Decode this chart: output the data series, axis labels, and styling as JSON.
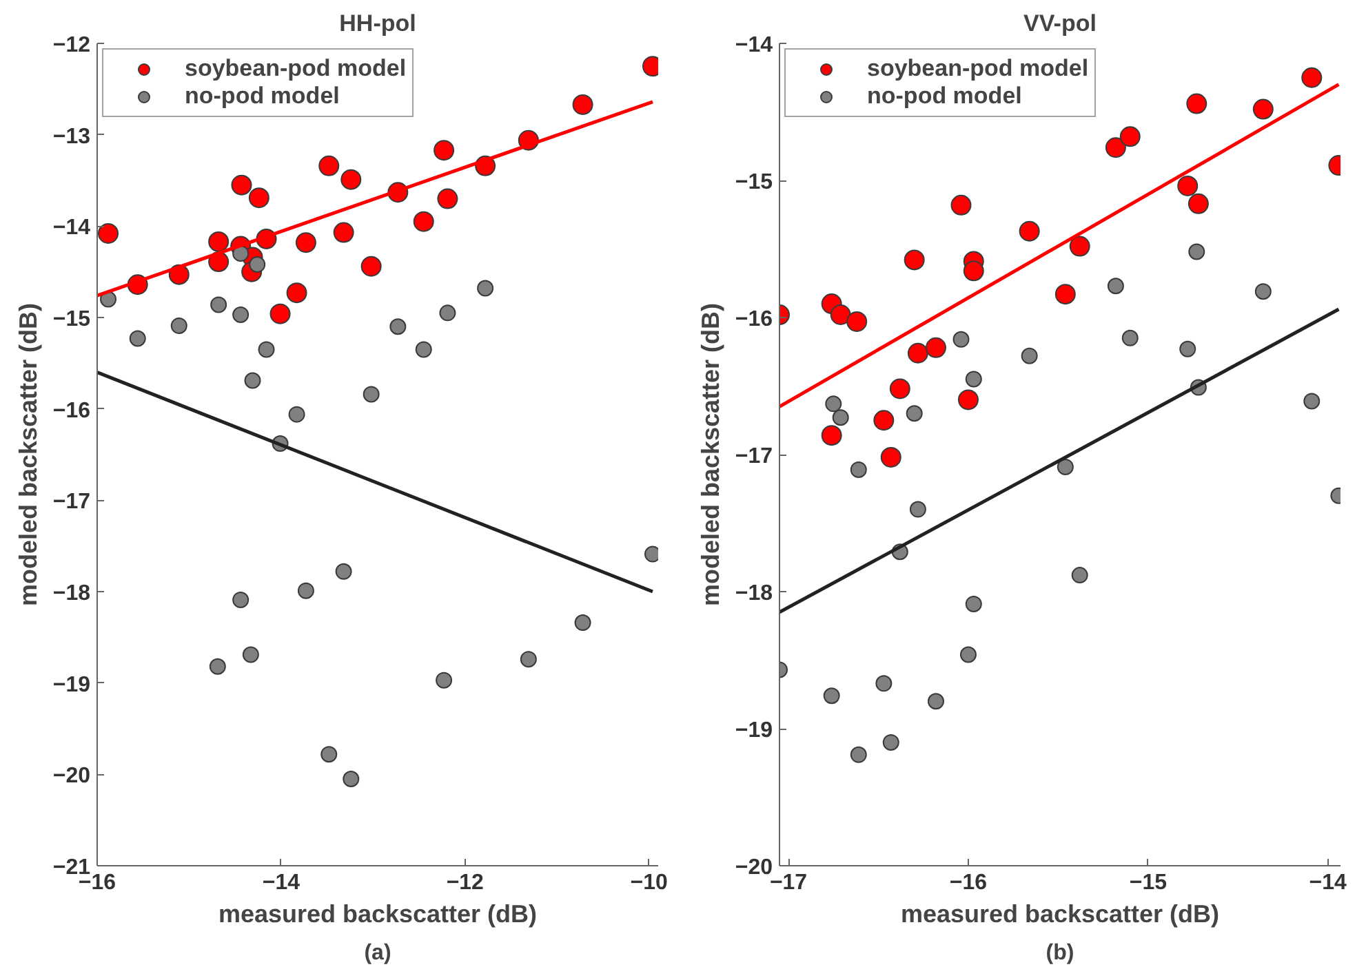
{
  "chart_data": [
    {
      "type": "scatter",
      "title": "HH-pol",
      "xlabel": "measured backscatter (dB)",
      "ylabel": "modeled backscatter (dB)",
      "annotations": [
        "(a)"
      ],
      "xlim": [
        -16,
        -9.9
      ],
      "ylim": [
        -21,
        -12
      ],
      "xticks": [
        -16,
        -14,
        -12,
        -10
      ],
      "yticks": [
        -21,
        -20,
        -19,
        -18,
        -17,
        -16,
        -15,
        -14,
        -13,
        -12
      ],
      "grid": false,
      "legend": "top left",
      "series": [
        {
          "name": "soybean-pod model",
          "marker": "circle",
          "color": "#ff0000",
          "x": [
            -9.96,
            -10.72,
            -11.31,
            -11.78,
            -12.23,
            -12.19,
            -12.45,
            -12.73,
            -13.02,
            -13.24,
            -13.48,
            -13.32,
            -13.73,
            -13.83,
            -14.01,
            -14.16,
            -14.24,
            -14.43,
            -14.44,
            -14.31,
            -14.32,
            -14.68,
            -14.68,
            -15.11,
            -15.56,
            -15.88
          ],
          "values": [
            -12.25,
            -12.67,
            -13.06,
            -13.34,
            -13.17,
            -13.7,
            -13.95,
            -13.63,
            -14.44,
            -13.49,
            -13.34,
            -14.07,
            -14.18,
            -14.73,
            -14.96,
            -14.14,
            -13.69,
            -13.55,
            -14.22,
            -14.34,
            -14.5,
            -14.17,
            -14.39,
            -14.53,
            -14.64,
            -14.08
          ]
        },
        {
          "name": "no-pod model",
          "marker": "circle",
          "color": "#808080",
          "x": [
            -15.88,
            -15.56,
            -15.11,
            -14.68,
            -14.44,
            -14.44,
            -14.26,
            -14.16,
            -14.31,
            -13.83,
            -14.01,
            -13.02,
            -12.73,
            -12.45,
            -12.19,
            -11.78,
            -9.96,
            -10.72,
            -11.31,
            -12.23,
            -13.32,
            -13.73,
            -13.48,
            -13.24,
            -14.44,
            -14.33,
            -14.69
          ],
          "values": [
            -14.8,
            -15.23,
            -15.09,
            -14.86,
            -14.97,
            -14.3,
            -14.42,
            -15.35,
            -15.69,
            -16.06,
            -16.38,
            -15.84,
            -15.1,
            -15.35,
            -14.95,
            -14.68,
            -17.59,
            -18.34,
            -18.74,
            -18.97,
            -17.78,
            -17.99,
            -19.78,
            -20.05,
            -18.09,
            -18.69,
            -18.82
          ]
        },
        {
          "type": "line",
          "marker": "none",
          "color": "#ff0000",
          "x": [
            -16,
            -9.96
          ],
          "values": [
            -14.76,
            -12.64
          ]
        },
        {
          "type": "line",
          "marker": "none",
          "color": "#222222",
          "x": [
            -16,
            -9.96
          ],
          "values": [
            -15.6,
            -18.0
          ]
        }
      ]
    },
    {
      "type": "scatter",
      "title": "VV-pol",
      "xlabel": "measured backscatter (dB)",
      "ylabel": "modeled backscatter (dB)",
      "annotations": [
        "(b)"
      ],
      "xlim": [
        -17.05,
        -13.93
      ],
      "ylim": [
        -20,
        -14
      ],
      "xticks": [
        -17,
        -16,
        -15,
        -14
      ],
      "yticks": [
        -20,
        -19,
        -18,
        -17,
        -16,
        -15,
        -14
      ],
      "grid": false,
      "legend": "top left",
      "series": [
        {
          "name": "soybean-pod model",
          "marker": "circle",
          "color": "#ff0000",
          "x": [
            -17.05,
            -16.76,
            -16.71,
            -16.62,
            -16.76,
            -16.47,
            -16.43,
            -16.38,
            -16.3,
            -16.28,
            -16.18,
            -16.04,
            -15.97,
            -15.97,
            -16.0,
            -15.66,
            -15.46,
            -15.38,
            -15.18,
            -15.1,
            -14.73,
            -14.36,
            -14.09,
            -13.94,
            -14.78,
            -14.72
          ],
          "values": [
            -15.98,
            -15.9,
            -15.98,
            -16.03,
            -16.86,
            -16.75,
            -17.02,
            -16.52,
            -15.58,
            -16.26,
            -16.22,
            -15.18,
            -15.59,
            -15.66,
            -16.6,
            -15.37,
            -15.83,
            -15.48,
            -14.76,
            -14.68,
            -14.44,
            -14.48,
            -14.25,
            -14.89,
            -15.04,
            -15.17
          ]
        },
        {
          "name": "no-pod model",
          "marker": "circle",
          "color": "#808080",
          "x": [
            -16.75,
            -16.71,
            -16.3,
            -16.04,
            -15.97,
            -15.66,
            -15.18,
            -15.1,
            -14.73,
            -14.36,
            -14.78,
            -14.72,
            -14.09,
            -13.94,
            -16.61,
            -16.28,
            -16.38,
            -15.46,
            -15.38,
            -15.97,
            -16.0,
            -17.05,
            -16.76,
            -16.47,
            -16.18,
            -16.61,
            -16.43
          ],
          "values": [
            -16.63,
            -16.73,
            -16.7,
            -16.16,
            -16.45,
            -16.28,
            -15.77,
            -16.15,
            -15.52,
            -15.81,
            -16.23,
            -16.51,
            -16.61,
            -17.3,
            -17.11,
            -17.4,
            -17.71,
            -17.09,
            -17.88,
            -18.09,
            -18.46,
            -18.57,
            -18.76,
            -18.67,
            -18.8,
            -19.19,
            -19.1
          ]
        },
        {
          "type": "line",
          "marker": "none",
          "color": "#ff0000",
          "x": [
            -17.05,
            -13.94
          ],
          "values": [
            -16.65,
            -14.3
          ]
        },
        {
          "type": "line",
          "marker": "none",
          "color": "#222222",
          "x": [
            -17.05,
            -13.94
          ],
          "values": [
            -18.15,
            -15.94
          ]
        }
      ]
    }
  ]
}
